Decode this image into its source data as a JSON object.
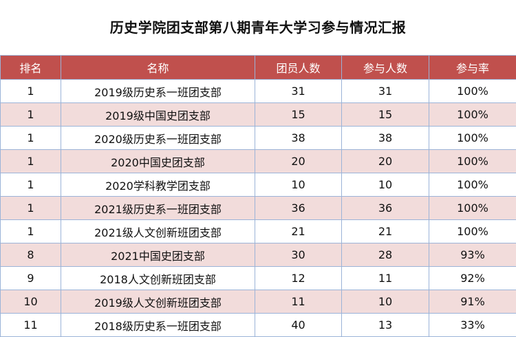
{
  "title": "历史学院团支部第八期青年大学习参与情况汇报",
  "table": {
    "headers": [
      "排名",
      "名称",
      "团员人数",
      "参与人数",
      "参与率"
    ],
    "rows": [
      {
        "rank": "1",
        "name": "2019级历史系一班团支部",
        "members": "31",
        "participants": "31",
        "rate": "100%"
      },
      {
        "rank": "1",
        "name": "2019级中国史团支部",
        "members": "15",
        "participants": "15",
        "rate": "100%"
      },
      {
        "rank": "1",
        "name": "2020级历史系一班团支部",
        "members": "38",
        "participants": "38",
        "rate": "100%"
      },
      {
        "rank": "1",
        "name": "2020中国史团支部",
        "members": "20",
        "participants": "20",
        "rate": "100%"
      },
      {
        "rank": "1",
        "name": "2020学科教学团支部",
        "members": "10",
        "participants": "10",
        "rate": "100%"
      },
      {
        "rank": "1",
        "name": "2021级历史系一班团支部",
        "members": "36",
        "participants": "36",
        "rate": "100%"
      },
      {
        "rank": "1",
        "name": "2021级人文创新班团支部",
        "members": "21",
        "participants": "21",
        "rate": "100%"
      },
      {
        "rank": "8",
        "name": "2021中国史团支部",
        "members": "30",
        "participants": "28",
        "rate": "93%"
      },
      {
        "rank": "9",
        "name": "2018人文创新班团支部",
        "members": "12",
        "participants": "11",
        "rate": "92%"
      },
      {
        "rank": "10",
        "name": "2019级人文创新班团支部",
        "members": "11",
        "participants": "10",
        "rate": "91%"
      },
      {
        "rank": "11",
        "name": "2018级历史系一班团支部",
        "members": "40",
        "participants": "13",
        "rate": "33%"
      }
    ]
  },
  "colors": {
    "header_bg": "#c0504d",
    "header_text": "#ffffff",
    "row_alt_bg": "#f2dcdb",
    "grid": "#9bb3d8"
  }
}
